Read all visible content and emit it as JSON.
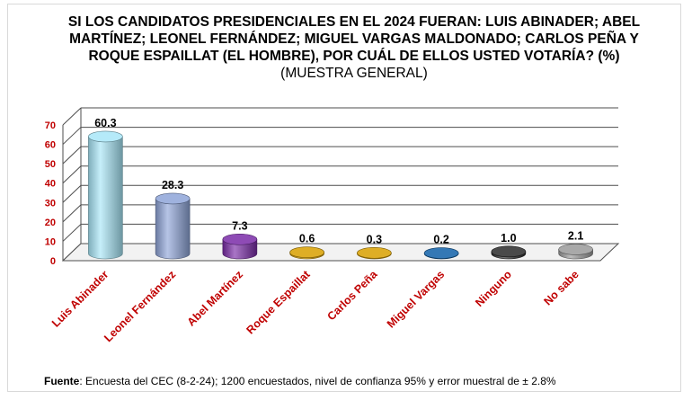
{
  "title": {
    "main": "SI LOS CANDIDATOS PRESIDENCIALES EN EL 2024 FUERAN: LUIS ABINADER; ABEL MARTÍNEZ; LEONEL FERNÁNDEZ; MIGUEL VARGAS MALDONADO; CARLOS PEÑA Y ROQUE ESPAILLAT (EL HOMBRE), POR CUÁL DE ELLOS USTED VOTARÍA? (%)",
    "suffix": "(MUESTRA GENERAL)"
  },
  "source": {
    "label": "Fuente",
    "text": ": Encuesta del CEC (8-2-24); 1200 encuestados, nivel de confianza 95% y error muestral de ± 2.8%"
  },
  "chart_data": {
    "type": "bar",
    "style": "3d-cylinder",
    "categories": [
      "Luis Abinader",
      "Leonel Fernández",
      "Abel Martínez",
      "Roque Espaillat",
      "Carlos Peña",
      "Miguel Vargas",
      "Ninguno",
      "No sabe"
    ],
    "values": [
      60.3,
      28.3,
      7.3,
      0.6,
      0.3,
      0.2,
      1.0,
      2.1
    ],
    "data_labels": [
      "60.3",
      "28.3",
      "7.3",
      "0.6",
      "0.3",
      "0.2",
      "1.0",
      "2.1"
    ],
    "colors": [
      "#a8e6f8",
      "#8ea4d8",
      "#7a2ba8",
      "#d8a000",
      "#d8a000",
      "#1060a8",
      "#2a2a2a",
      "#9a9a9a"
    ],
    "ylim": [
      0,
      70
    ],
    "yticks": [
      "0",
      "10",
      "20",
      "30",
      "40",
      "50",
      "60",
      "70"
    ],
    "grid": true,
    "legend": "none",
    "xlabel": "",
    "ylabel": ""
  }
}
